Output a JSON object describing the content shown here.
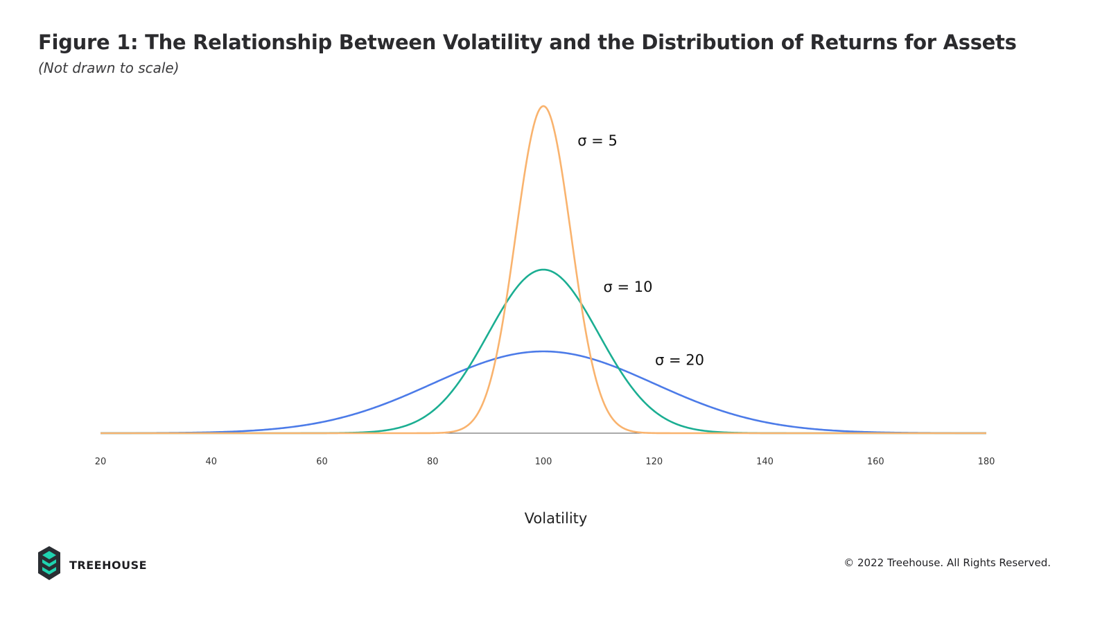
{
  "header": {
    "title": "Figure 1: The Relationship Between Volatility and the Distribution of Returns for Assets",
    "subtitle": "(Not drawn to scale)"
  },
  "chart_data": {
    "type": "line",
    "title": "Figure 1: The Relationship Between Volatility and the Distribution of Returns for Assets",
    "subtitle": "(Not drawn to scale)",
    "xlabel": "Volatility",
    "ylabel": "",
    "xlim": [
      20,
      180
    ],
    "x_ticks": [
      20,
      40,
      60,
      80,
      100,
      120,
      140,
      160,
      180
    ],
    "grid": false,
    "mean": 100,
    "series": [
      {
        "name": "σ = 5",
        "sigma": 5,
        "peak": 1.0,
        "color": "#F9B36E"
      },
      {
        "name": "σ = 10",
        "sigma": 10,
        "peak": 0.5,
        "color": "#1BAE92"
      },
      {
        "name": "σ = 20",
        "sigma": 20,
        "peak": 0.25,
        "color": "#4C7BE8"
      }
    ]
  },
  "footer": {
    "brand": "TREEHOUSE",
    "copyright": "© 2022 Treehouse. All Rights Reserved.",
    "logo_icon": "treehouse-logo-icon",
    "logo_colors": {
      "dark": "#2A2E33",
      "accent": "#1FD3B0"
    }
  }
}
